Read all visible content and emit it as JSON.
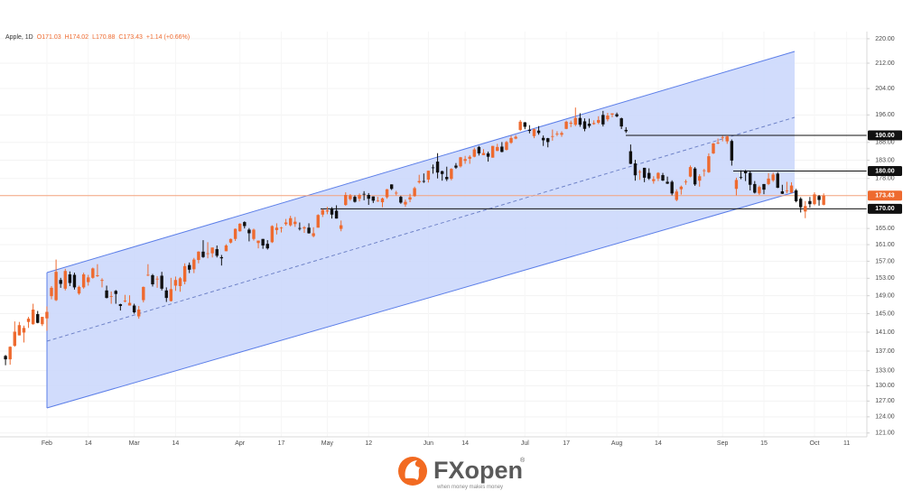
{
  "chart_data": {
    "type": "candlestick",
    "legend": {
      "symbol": "Apple, 1D",
      "open": "O171.03",
      "high": "H174.02",
      "low": "L170.88",
      "close": "C173.43",
      "change": "+1.14 (+0.66%)"
    },
    "up_color": "#ee6a2f",
    "down_color": "#111111",
    "log_scale": true,
    "grid": true,
    "ylim": [
      120.3,
      222.4
    ],
    "yticks": [
      {
        "value": 220,
        "label": "220.00"
      },
      {
        "value": 212,
        "label": "212.00"
      },
      {
        "value": 204,
        "label": "204.00"
      },
      {
        "value": 196,
        "label": "196.00"
      },
      {
        "value": 188,
        "label": "188.00"
      },
      {
        "value": 183,
        "label": "183.00"
      },
      {
        "value": 178,
        "label": "178.00"
      },
      {
        "value": 165,
        "label": "165.00"
      },
      {
        "value": 161,
        "label": "161.00"
      },
      {
        "value": 157,
        "label": "157.00"
      },
      {
        "value": 153,
        "label": "153.00"
      },
      {
        "value": 149,
        "label": "149.00"
      },
      {
        "value": 145,
        "label": "145.00"
      },
      {
        "value": 141,
        "label": "141.00"
      },
      {
        "value": 137,
        "label": "137.00"
      },
      {
        "value": 133,
        "label": "133.00"
      },
      {
        "value": 130,
        "label": "130.00"
      },
      {
        "value": 127,
        "label": "127.00"
      },
      {
        "value": 124,
        "label": "124.00"
      },
      {
        "value": 121,
        "label": "121.00"
      }
    ],
    "levels": [
      {
        "value": 190,
        "label": "190.00"
      },
      {
        "value": 180,
        "label": "180.00"
      },
      {
        "value": 170,
        "label": "170.00"
      }
    ],
    "last_price": {
      "value": 173.43,
      "label": "173.43"
    },
    "xlim": [
      -1.2,
      187.4
    ],
    "xticks": [
      {
        "value": 9,
        "label": "Feb"
      },
      {
        "value": 18,
        "label": "14"
      },
      {
        "value": 28,
        "label": "Mar"
      },
      {
        "value": 37,
        "label": "14"
      },
      {
        "value": 51,
        "label": "Apr"
      },
      {
        "value": 60,
        "label": "17"
      },
      {
        "value": 70,
        "label": "May"
      },
      {
        "value": 79,
        "label": "12"
      },
      {
        "value": 92,
        "label": "Jun"
      },
      {
        "value": 100,
        "label": "14"
      },
      {
        "value": 113,
        "label": "Jul"
      },
      {
        "value": 122,
        "label": "17"
      },
      {
        "value": 133,
        "label": "Aug"
      },
      {
        "value": 142,
        "label": "14"
      },
      {
        "value": 156,
        "label": "Sep"
      },
      {
        "value": 165,
        "label": "15"
      },
      {
        "value": 176,
        "label": "Oct"
      },
      {
        "value": 183,
        "label": "11"
      }
    ],
    "ohlc": [
      [
        136.0,
        136.2,
        134.1,
        135.3
      ],
      [
        135.3,
        138.0,
        134.2,
        137.9
      ],
      [
        138.1,
        143.3,
        137.9,
        141.1
      ],
      [
        140.3,
        143.2,
        140.3,
        142.5
      ],
      [
        140.9,
        142.4,
        138.8,
        141.9
      ],
      [
        143.2,
        144.3,
        141.9,
        143.9
      ],
      [
        142.7,
        147.2,
        142.6,
        145.9
      ],
      [
        144.9,
        145.6,
        142.9,
        143.0
      ],
      [
        142.7,
        144.3,
        142.3,
        144.3
      ],
      [
        143.97,
        146.6,
        141.3,
        145.4
      ],
      [
        148.9,
        151.2,
        148.2,
        150.8
      ],
      [
        148.0,
        157.4,
        147.8,
        154.5
      ],
      [
        152.6,
        153.1,
        150.8,
        151.7
      ],
      [
        150.6,
        155.2,
        150.2,
        154.7
      ],
      [
        153.9,
        154.6,
        151.2,
        151.9
      ],
      [
        153.8,
        154.3,
        150.4,
        150.9
      ],
      [
        149.5,
        151.3,
        149.2,
        151.0
      ],
      [
        150.9,
        154.3,
        150.6,
        153.9
      ],
      [
        152.1,
        153.8,
        151.3,
        153.2
      ],
      [
        153.1,
        155.5,
        152.9,
        155.3
      ],
      [
        153.5,
        156.3,
        153.3,
        153.7
      ],
      [
        152.4,
        153.0,
        150.9,
        152.6
      ],
      [
        150.2,
        151.3,
        148.4,
        148.5
      ],
      [
        148.9,
        149.95,
        147.2,
        148.9
      ],
      [
        150.1,
        150.3,
        147.2,
        149.4
      ],
      [
        147.1,
        147.2,
        145.7,
        146.7
      ],
      [
        147.7,
        149.2,
        147.5,
        147.9
      ],
      [
        146.8,
        149.1,
        146.8,
        147.4
      ],
      [
        146.8,
        147.2,
        145.0,
        145.3
      ],
      [
        144.4,
        146.7,
        143.9,
        145.9
      ],
      [
        148.0,
        151.1,
        147.5,
        151.0
      ],
      [
        153.8,
        156.3,
        153.5,
        153.8
      ],
      [
        153.7,
        154.0,
        151.1,
        151.6
      ],
      [
        152.8,
        153.5,
        150.8,
        152.9
      ],
      [
        153.6,
        154.5,
        150.2,
        150.6
      ],
      [
        150.2,
        150.9,
        147.6,
        148.5
      ],
      [
        147.8,
        153.1,
        147.7,
        150.5
      ],
      [
        151.3,
        153.4,
        150.1,
        152.6
      ],
      [
        151.2,
        153.3,
        149.9,
        152.99
      ],
      [
        152.2,
        156.5,
        151.6,
        155.85
      ],
      [
        156.1,
        156.7,
        154.2,
        155.0
      ],
      [
        155.1,
        157.8,
        154.2,
        157.4
      ],
      [
        157.3,
        159.4,
        156.5,
        159.3
      ],
      [
        159.3,
        162.1,
        157.8,
        158.0
      ],
      [
        158.8,
        161.6,
        157.7,
        158.9
      ],
      [
        158.9,
        160.3,
        157.9,
        160.3
      ],
      [
        159.9,
        160.8,
        157.9,
        158.3
      ],
      [
        157.97,
        158.5,
        155.98,
        157.7
      ],
      [
        159.4,
        161.1,
        159.4,
        160.8
      ],
      [
        161.5,
        162.5,
        161.3,
        162.4
      ],
      [
        162.4,
        165.0,
        161.9,
        164.9
      ],
      [
        164.3,
        166.3,
        164.2,
        166.2
      ],
      [
        166.6,
        166.8,
        165.0,
        165.6
      ],
      [
        164.7,
        165.1,
        161.8,
        163.8
      ],
      [
        162.4,
        164.96,
        162.0,
        164.7
      ],
      [
        161.4,
        162.0,
        160.1,
        162.0
      ],
      [
        162.4,
        162.4,
        159.99,
        160.8
      ],
      [
        161.2,
        162.1,
        159.8,
        160.1
      ],
      [
        161.6,
        165.8,
        161.4,
        165.6
      ],
      [
        164.6,
        166.3,
        163.5,
        165.2
      ],
      [
        165.1,
        165.4,
        164.0,
        165.2
      ],
      [
        166.1,
        167.4,
        165.7,
        166.5
      ],
      [
        165.8,
        168.2,
        165.5,
        167.6
      ],
      [
        166.1,
        167.9,
        165.4,
        166.7
      ],
      [
        165.1,
        166.5,
        164.5,
        165.0
      ],
      [
        165.0,
        165.6,
        163.9,
        165.3
      ],
      [
        165.2,
        166.3,
        163.7,
        163.8
      ],
      [
        163.1,
        165.3,
        162.8,
        163.8
      ],
      [
        165.2,
        168.6,
        165.2,
        168.4
      ],
      [
        168.5,
        169.9,
        167.9,
        169.7
      ],
      [
        169.3,
        170.5,
        168.6,
        169.6
      ],
      [
        170.1,
        170.4,
        167.5,
        168.5
      ],
      [
        169.5,
        170.9,
        167.5,
        167.5
      ],
      [
        164.9,
        167.0,
        164.3,
        165.8
      ],
      [
        170.98,
        174.3,
        170.8,
        173.6
      ],
      [
        172.5,
        173.85,
        172.1,
        173.5
      ],
      [
        173.1,
        173.5,
        171.6,
        171.8
      ],
      [
        172.6,
        174.0,
        171.9,
        173.6
      ],
      [
        173.9,
        174.6,
        172.2,
        173.8
      ],
      [
        173.6,
        174.1,
        171.0,
        172.6
      ],
      [
        173.2,
        173.2,
        171.5,
        172.1
      ],
      [
        171.99,
        173.1,
        171.8,
        172.1
      ],
      [
        171.7,
        172.9,
        170.4,
        172.7
      ],
      [
        173.0,
        175.2,
        172.6,
        175.1
      ],
      [
        176.4,
        176.4,
        174.9,
        175.2
      ],
      [
        173.98,
        174.7,
        173.5,
        174.2
      ],
      [
        173.1,
        173.4,
        171.3,
        171.6
      ],
      [
        171.1,
        172.4,
        170.5,
        171.8
      ],
      [
        172.4,
        173.9,
        171.7,
        172.99
      ],
      [
        173.3,
        175.8,
        173.1,
        175.4
      ],
      [
        176.96,
        178.99,
        176.6,
        177.3
      ],
      [
        177.3,
        179.35,
        176.8,
        177.25
      ],
      [
        177.7,
        180.1,
        176.9,
        180.1
      ],
      [
        181.0,
        181.8,
        179.3,
        180.95
      ],
      [
        182.6,
        184.95,
        178.0,
        179.6
      ],
      [
        179.97,
        180.1,
        177.4,
        179.2
      ],
      [
        178.4,
        181.2,
        177.3,
        177.8
      ],
      [
        177.9,
        180.8,
        177.5,
        180.6
      ],
      [
        181.5,
        182.2,
        180.6,
        180.96
      ],
      [
        181.3,
        183.9,
        180.97,
        183.8
      ],
      [
        182.8,
        184.2,
        182.0,
        183.3
      ],
      [
        183.4,
        184.4,
        182.0,
        183.95
      ],
      [
        183.96,
        186.5,
        183.8,
        186.0
      ],
      [
        186.7,
        186.99,
        184.3,
        184.9
      ],
      [
        184.4,
        186.1,
        184.4,
        185.0
      ],
      [
        184.9,
        185.4,
        182.6,
        183.96
      ],
      [
        183.7,
        187.0,
        183.7,
        187.0
      ],
      [
        185.6,
        187.6,
        185.5,
        186.7
      ],
      [
        186.8,
        188.1,
        185.2,
        185.3
      ],
      [
        185.9,
        188.4,
        185.7,
        188.1
      ],
      [
        187.9,
        189.9,
        187.6,
        189.25
      ],
      [
        189.1,
        190.1,
        188.9,
        189.6
      ],
      [
        191.6,
        194.5,
        191.3,
        194.0
      ],
      [
        193.8,
        193.9,
        191.8,
        192.5
      ],
      [
        191.6,
        192.98,
        190.6,
        191.3
      ],
      [
        189.8,
        192.0,
        189.2,
        191.8
      ],
      [
        191.4,
        192.7,
        190.2,
        190.7
      ],
      [
        189.3,
        189.99,
        187.0,
        188.6
      ],
      [
        189.2,
        189.3,
        186.6,
        188.1
      ],
      [
        189.7,
        191.7,
        188.5,
        189.8
      ],
      [
        190.5,
        191.2,
        189.8,
        190.5
      ],
      [
        190.2,
        191.2,
        189.6,
        190.7
      ],
      [
        191.9,
        194.3,
        191.8,
        193.99
      ],
      [
        193.4,
        194.3,
        192.4,
        193.7
      ],
      [
        193.1,
        198.2,
        192.7,
        195.1
      ],
      [
        195.1,
        196.5,
        192.5,
        193.1
      ],
      [
        194.1,
        194.97,
        191.2,
        191.9
      ],
      [
        193.4,
        194.9,
        192.2,
        192.75
      ],
      [
        193.3,
        194.4,
        193.1,
        193.6
      ],
      [
        193.7,
        195.6,
        193.3,
        194.5
      ],
      [
        196.0,
        197.2,
        192.6,
        193.2
      ],
      [
        194.7,
        196.6,
        194.1,
        195.8
      ],
      [
        196.1,
        196.5,
        195.3,
        196.45
      ],
      [
        196.2,
        196.7,
        195.3,
        195.6
      ],
      [
        195.0,
        195.2,
        191.85,
        192.6
      ],
      [
        191.6,
        192.4,
        190.7,
        191.2
      ],
      [
        185.5,
        187.4,
        181.9,
        181.99
      ],
      [
        182.1,
        183.1,
        177.4,
        178.85
      ],
      [
        179.7,
        180.3,
        177.6,
        179.8
      ],
      [
        180.9,
        180.9,
        177.0,
        178.2
      ],
      [
        179.5,
        180.75,
        177.6,
        177.97
      ],
      [
        177.3,
        178.6,
        176.6,
        177.8
      ],
      [
        177.97,
        179.7,
        177.3,
        179.5
      ],
      [
        178.9,
        179.5,
        177.3,
        177.45
      ],
      [
        177.1,
        178.5,
        176.5,
        176.6
      ],
      [
        177.1,
        177.5,
        173.5,
        174.0
      ],
      [
        172.3,
        175.1,
        171.96,
        174.5
      ],
      [
        175.1,
        176.1,
        173.7,
        175.8
      ],
      [
        177.1,
        177.7,
        176.3,
        177.2
      ],
      [
        178.5,
        181.55,
        178.3,
        181.1
      ],
      [
        180.7,
        181.1,
        176.0,
        176.4
      ],
      [
        177.4,
        179.15,
        175.8,
        178.6
      ],
      [
        180.1,
        180.6,
        178.55,
        180.2
      ],
      [
        179.7,
        184.9,
        179.5,
        184.1
      ],
      [
        184.9,
        187.85,
        184.7,
        187.7
      ],
      [
        187.8,
        189.1,
        187.5,
        187.9
      ],
      [
        189.5,
        189.9,
        188.3,
        189.5
      ],
      [
        188.3,
        189.98,
        187.6,
        189.7
      ],
      [
        188.4,
        188.85,
        181.5,
        182.9
      ],
      [
        175.2,
        178.2,
        173.5,
        177.6
      ],
      [
        178.35,
        180.2,
        177.8,
        178.2
      ],
      [
        180.1,
        180.3,
        177.3,
        179.4
      ],
      [
        179.5,
        180.1,
        174.8,
        176.3
      ],
      [
        176.5,
        177.3,
        173.98,
        174.2
      ],
      [
        174.0,
        176.1,
        173.6,
        175.7
      ],
      [
        176.5,
        176.5,
        173.8,
        175.0
      ],
      [
        176.5,
        179.4,
        176.2,
        177.97
      ],
      [
        177.5,
        179.6,
        177.1,
        179.07
      ],
      [
        179.3,
        179.7,
        175.4,
        175.5
      ],
      [
        174.55,
        176.3,
        173.86,
        173.9
      ],
      [
        174.7,
        177.1,
        174.05,
        174.8
      ],
      [
        174.2,
        176.97,
        174.15,
        176.1
      ],
      [
        174.8,
        175.2,
        171.66,
        171.96
      ],
      [
        172.6,
        173.0,
        169.05,
        170.4
      ],
      [
        169.3,
        172.0,
        167.6,
        170.7
      ],
      [
        172.0,
        173.07,
        170.3,
        171.2
      ],
      [
        171.2,
        174.3,
        170.9,
        173.75
      ],
      [
        173.3,
        173.6,
        170.8,
        172.29
      ],
      [
        171.03,
        174.02,
        170.88,
        173.43
      ]
    ]
  },
  "branding": {
    "name": "FXopen",
    "mark": "®",
    "tagline": "when money makes money"
  }
}
